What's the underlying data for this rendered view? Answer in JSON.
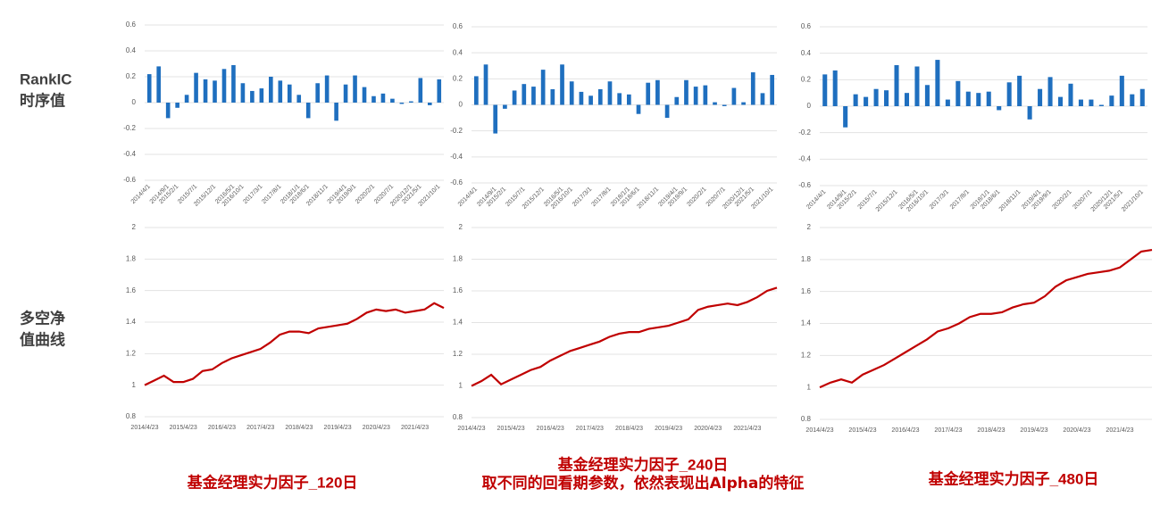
{
  "row_labels": [
    [
      "RankIC",
      "时序值"
    ],
    [
      "多空净",
      "值曲线"
    ]
  ],
  "chart_data": [
    {
      "type": "bar",
      "color": "#1f6fbf",
      "ylim": [
        -0.6,
        0.6
      ],
      "yticks": [
        -0.6,
        -0.4,
        -0.2,
        0,
        0.2,
        0.4,
        0.6
      ],
      "grid": true,
      "categories": [
        "2014/4/1",
        null,
        "2014/9/1",
        "2015/2/1",
        null,
        "2015/7/1",
        null,
        "2015/12/1",
        null,
        "2016/5/1",
        "2016/10/1",
        null,
        "2017/3/1",
        null,
        "2017/8/1",
        null,
        "2018/1/1",
        "2018/6/1",
        null,
        "2018/11/1",
        null,
        "2019/4/1",
        "2019/9/1",
        null,
        "2020/2/1",
        null,
        "2020/7/1",
        null,
        "2020/12/1",
        "2021/5/1",
        null,
        "2021/10/1"
      ],
      "values": [
        0.22,
        0.28,
        -0.12,
        -0.04,
        0.06,
        0.23,
        0.18,
        0.17,
        0.26,
        0.29,
        0.15,
        0.09,
        0.11,
        0.2,
        0.17,
        0.14,
        0.06,
        -0.12,
        0.15,
        0.21,
        -0.14,
        0.14,
        0.21,
        0.12,
        0.05,
        0.07,
        0.03,
        -0.01,
        0.01,
        0.19,
        -0.02,
        0.18
      ]
    },
    {
      "type": "bar",
      "color": "#1f6fbf",
      "ylim": [
        -0.6,
        0.6
      ],
      "yticks": [
        -0.6,
        -0.4,
        -0.2,
        0,
        0.2,
        0.4,
        0.6
      ],
      "grid": true,
      "categories": [
        "2014/4/1",
        null,
        "2014/9/1",
        "2015/2/1",
        null,
        "2015/7/1",
        null,
        "2015/12/1",
        null,
        "2016/5/1",
        "2016/10/1",
        null,
        "2017/3/1",
        null,
        "2017/8/1",
        null,
        "2018/1/1",
        "2018/6/1",
        null,
        "2018/11/1",
        null,
        "2019/4/1",
        "2019/9/1",
        null,
        "2020/2/1",
        null,
        "2020/7/1",
        null,
        "2020/12/1",
        "2021/5/1",
        null,
        "2021/10/1"
      ],
      "values": [
        0.22,
        0.31,
        -0.22,
        -0.03,
        0.11,
        0.16,
        0.14,
        0.27,
        0.12,
        0.31,
        0.18,
        0.1,
        0.07,
        0.12,
        0.18,
        0.09,
        0.08,
        -0.07,
        0.17,
        0.19,
        -0.1,
        0.06,
        0.19,
        0.14,
        0.15,
        0.02,
        -0.01,
        0.13,
        0.02,
        0.25,
        0.09,
        0.23
      ]
    },
    {
      "type": "bar",
      "color": "#1f6fbf",
      "ylim": [
        -0.6,
        0.6
      ],
      "yticks": [
        -0.6,
        -0.4,
        -0.2,
        0,
        0.2,
        0.4,
        0.6
      ],
      "grid": true,
      "categories": [
        "2014/4/1",
        null,
        "2014/9/1",
        "2015/2/1",
        null,
        "2015/7/1",
        null,
        "2015/12/1",
        null,
        "2016/5/1",
        "2016/10/1",
        null,
        "2017/3/1",
        null,
        "2017/8/1",
        null,
        "2018/1/1",
        "2018/6/1",
        null,
        "2018/11/1",
        null,
        "2019/4/1",
        "2019/9/1",
        null,
        "2020/2/1",
        null,
        "2020/7/1",
        null,
        "2020/12/1",
        "2021/5/1",
        null,
        "2021/10/1"
      ],
      "values": [
        0.24,
        0.27,
        -0.16,
        0.09,
        0.07,
        0.13,
        0.12,
        0.31,
        0.1,
        0.3,
        0.16,
        0.35,
        0.05,
        0.19,
        0.11,
        0.1,
        0.11,
        -0.03,
        0.18,
        0.23,
        -0.1,
        0.13,
        0.22,
        0.07,
        0.17,
        0.05,
        0.05,
        0.01,
        0.08,
        0.23,
        0.09,
        0.13
      ]
    },
    {
      "type": "line",
      "color": "#c00000",
      "ylim": [
        0.8,
        2
      ],
      "yticks": [
        0.8,
        1,
        1.2,
        1.4,
        1.6,
        1.8,
        2
      ],
      "grid": true,
      "categories": [
        "2014/4/23",
        null,
        null,
        null,
        "2015/4/23",
        null,
        null,
        null,
        "2016/4/23",
        null,
        null,
        null,
        "2017/4/23",
        null,
        null,
        null,
        "2018/4/23",
        null,
        null,
        null,
        "2019/4/23",
        null,
        null,
        null,
        "2020/4/23",
        null,
        null,
        null,
        "2021/4/23",
        null,
        null,
        null
      ],
      "values": [
        1.0,
        1.03,
        1.06,
        1.02,
        1.02,
        1.04,
        1.09,
        1.1,
        1.14,
        1.17,
        1.19,
        1.21,
        1.23,
        1.27,
        1.32,
        1.34,
        1.34,
        1.33,
        1.36,
        1.37,
        1.38,
        1.39,
        1.42,
        1.46,
        1.48,
        1.47,
        1.48,
        1.46,
        1.47,
        1.48,
        1.52,
        1.49
      ]
    },
    {
      "type": "line",
      "color": "#c00000",
      "ylim": [
        0.8,
        2
      ],
      "yticks": [
        0.8,
        1,
        1.2,
        1.4,
        1.6,
        1.8,
        2
      ],
      "grid": true,
      "categories": [
        "2014/4/23",
        null,
        null,
        null,
        "2015/4/23",
        null,
        null,
        null,
        "2016/4/23",
        null,
        null,
        null,
        "2017/4/23",
        null,
        null,
        null,
        "2018/4/23",
        null,
        null,
        null,
        "2019/4/23",
        null,
        null,
        null,
        "2020/4/23",
        null,
        null,
        null,
        "2021/4/23",
        null,
        null,
        null
      ],
      "values": [
        1.0,
        1.03,
        1.07,
        1.01,
        1.04,
        1.07,
        1.1,
        1.12,
        1.16,
        1.19,
        1.22,
        1.24,
        1.26,
        1.28,
        1.31,
        1.33,
        1.34,
        1.34,
        1.36,
        1.37,
        1.38,
        1.4,
        1.42,
        1.48,
        1.5,
        1.51,
        1.52,
        1.51,
        1.53,
        1.56,
        1.6,
        1.62
      ]
    },
    {
      "type": "line",
      "color": "#c00000",
      "ylim": [
        0.8,
        2
      ],
      "yticks": [
        0.8,
        1,
        1.2,
        1.4,
        1.6,
        1.8,
        2
      ],
      "grid": true,
      "categories": [
        "2014/4/23",
        null,
        null,
        null,
        "2015/4/23",
        null,
        null,
        null,
        "2016/4/23",
        null,
        null,
        null,
        "2017/4/23",
        null,
        null,
        null,
        "2018/4/23",
        null,
        null,
        null,
        "2019/4/23",
        null,
        null,
        null,
        "2020/4/23",
        null,
        null,
        null,
        "2021/4/23",
        null,
        null,
        null
      ],
      "values": [
        1.0,
        1.03,
        1.05,
        1.03,
        1.08,
        1.11,
        1.14,
        1.18,
        1.22,
        1.26,
        1.3,
        1.35,
        1.37,
        1.4,
        1.44,
        1.46,
        1.46,
        1.47,
        1.5,
        1.52,
        1.53,
        1.57,
        1.63,
        1.67,
        1.69,
        1.71,
        1.72,
        1.73,
        1.75,
        1.8,
        1.85,
        1.86
      ]
    }
  ],
  "captions": [
    "基金经理实力因子_120日",
    "基金经理实力因子_240日",
    "基金经理实力因子_480日"
  ],
  "note": "取不同的回看期参数，依然表现出Alpha的特征"
}
